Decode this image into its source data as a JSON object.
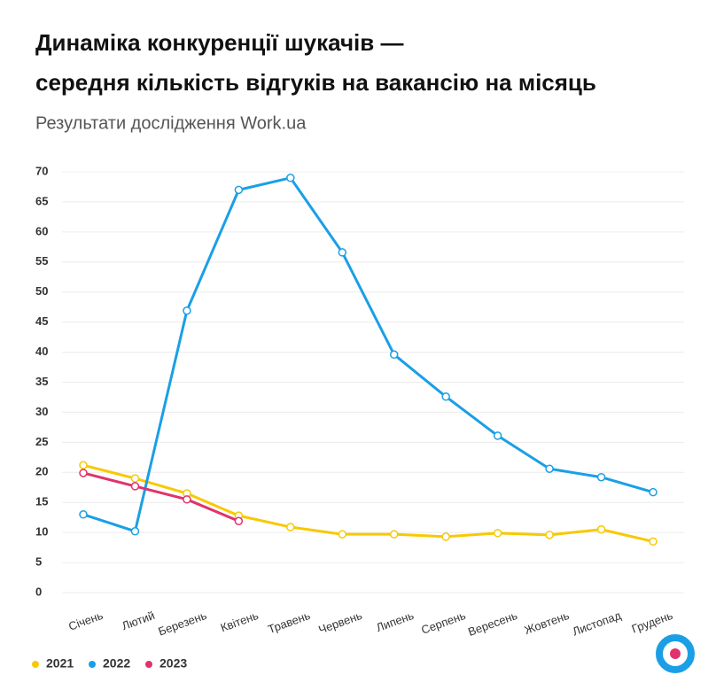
{
  "chart_data": {
    "type": "line",
    "title": [
      "Динаміка конкуренції шукачів —",
      "середня кількість відгуків на вакансію на місяць"
    ],
    "subtitle": "Результати дослідження Work.ua",
    "categories": [
      "Січень",
      "Лютий",
      "Березень",
      "Квітень",
      "Травень",
      "Червень",
      "Липень",
      "Серпень",
      "Вересень",
      "Жовтень",
      "Листопад",
      "Грудень"
    ],
    "series": [
      {
        "name": "2021",
        "color": "#f7c900",
        "values": [
          21.2,
          19.0,
          16.5,
          12.8,
          10.9,
          9.7,
          9.7,
          9.3,
          9.9,
          9.6,
          10.5,
          8.5
        ]
      },
      {
        "name": "2022",
        "color": "#1a9fe6",
        "values": [
          13.0,
          10.2,
          46.9,
          67.0,
          69.0,
          56.6,
          39.6,
          32.6,
          26.1,
          20.6,
          19.2,
          16.7
        ]
      },
      {
        "name": "2023",
        "color": "#e0336b",
        "values": [
          19.9,
          17.7,
          15.5,
          11.9,
          null,
          null,
          null,
          null,
          null,
          null,
          null,
          null
        ]
      }
    ],
    "ylim": [
      0,
      70
    ],
    "yticks": [
      0,
      5,
      10,
      15,
      20,
      25,
      30,
      35,
      40,
      45,
      50,
      55,
      60,
      65,
      70
    ],
    "grid": true,
    "legend": "bottom-left"
  }
}
